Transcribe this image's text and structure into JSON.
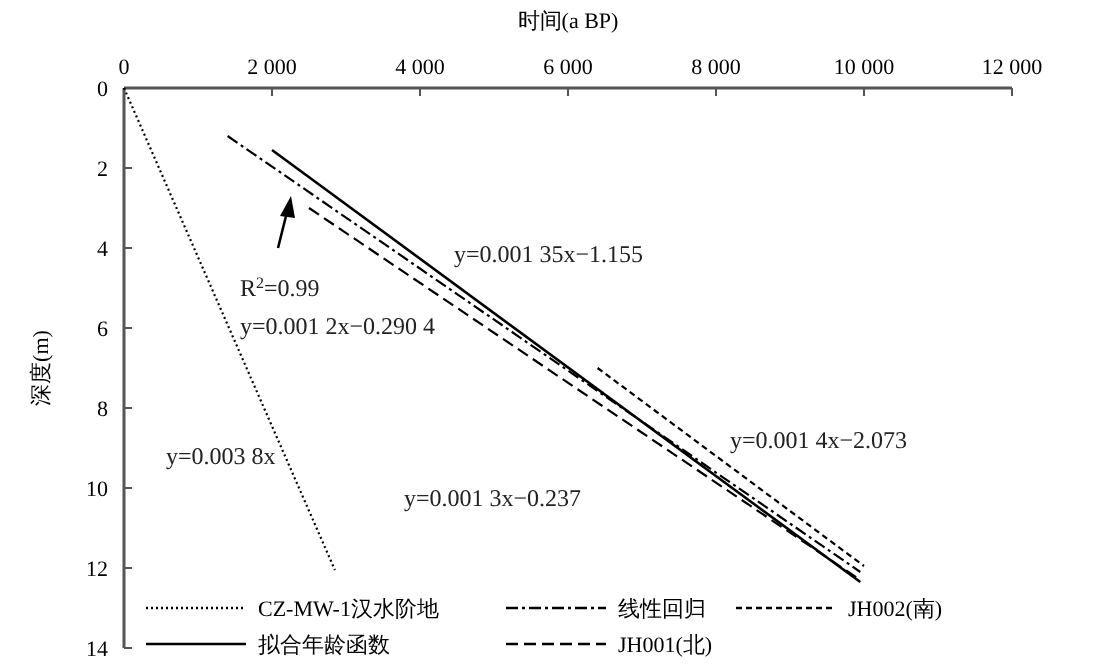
{
  "chart_data": {
    "type": "line",
    "xlabel": "时间(a BP)",
    "ylabel": "深度(m)",
    "xlim": [
      0,
      12000
    ],
    "xticks": [
      0,
      {
        "value": 2000,
        "label": "2 000"
      },
      {
        "value": 4000,
        "label": "4 000"
      },
      {
        "value": 6000,
        "label": "6 000"
      },
      {
        "value": 8000,
        "label": "8 000"
      },
      {
        "value": 10000,
        "label": "10 000"
      },
      {
        "value": 12000,
        "label": "12 000"
      }
    ],
    "ylim": [
      14,
      0
    ],
    "yticks": [
      0,
      2,
      4,
      6,
      8,
      10,
      12,
      14
    ],
    "legend": "bottom",
    "grid": false,
    "series": [
      {
        "name": "CZ-MW-1汉水阶地",
        "color": "#000000",
        "line_style": "dotted",
        "x": [
          0,
          2850
        ],
        "values": [
          0,
          12.05
        ]
      },
      {
        "name": "线性回归",
        "color": "#000000",
        "line_style": "dashdot",
        "x": [
          1400,
          9950
        ],
        "values": [
          1.2,
          12.1
        ]
      },
      {
        "name": "JH002(南)",
        "color": "#000000",
        "line_style": "dashed_fine",
        "x": [
          6400,
          10000
        ],
        "values": [
          7.0,
          11.95
        ]
      },
      {
        "name": "拟合年龄函数",
        "color": "#000000",
        "line_style": "solid",
        "x": [
          2000,
          9950
        ],
        "values": [
          1.55,
          12.35
        ]
      },
      {
        "name": "JH001(北)",
        "color": "#000000",
        "line_style": "dashed",
        "x": [
          2500,
          9950
        ],
        "values": [
          3.0,
          12.3
        ]
      }
    ],
    "annotations": [
      "R$^{2}$=0.99",
      "y=0.001 2x−0.290 4",
      "y=0.001 35x−1.155",
      "y=0.003 8x",
      "y=0.001 3x−0.237",
      "y=0.001 4x−2.073"
    ]
  }
}
